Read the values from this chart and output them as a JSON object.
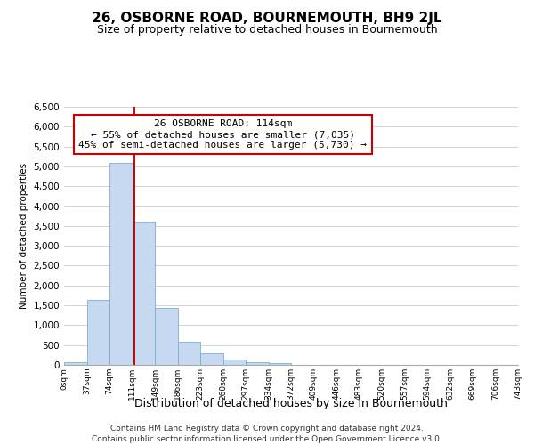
{
  "title": "26, OSBORNE ROAD, BOURNEMOUTH, BH9 2JL",
  "subtitle": "Size of property relative to detached houses in Bournemouth",
  "xlabel": "Distribution of detached houses by size in Bournemouth",
  "ylabel": "Number of detached properties",
  "bar_values": [
    60,
    1630,
    5080,
    3600,
    1430,
    580,
    300,
    145,
    60,
    40,
    0,
    0,
    0,
    0,
    0,
    0,
    0,
    0,
    0,
    0
  ],
  "bin_labels": [
    "0sqm",
    "37sqm",
    "74sqm",
    "111sqm",
    "149sqm",
    "186sqm",
    "223sqm",
    "260sqm",
    "297sqm",
    "334sqm",
    "372sqm",
    "409sqm",
    "446sqm",
    "483sqm",
    "520sqm",
    "557sqm",
    "594sqm",
    "632sqm",
    "669sqm",
    "706sqm",
    "743sqm"
  ],
  "bar_color": "#c6d9f0",
  "bar_edge_color": "#7badd4",
  "vertical_line_color": "#cc0000",
  "annotation_title": "26 OSBORNE ROAD: 114sqm",
  "annotation_line1": "← 55% of detached houses are smaller (7,035)",
  "annotation_line2": "45% of semi-detached houses are larger (5,730) →",
  "annotation_box_color": "#ffffff",
  "annotation_box_edge": "#cc0000",
  "ylim": [
    0,
    6500
  ],
  "yticks": [
    0,
    500,
    1000,
    1500,
    2000,
    2500,
    3000,
    3500,
    4000,
    4500,
    5000,
    5500,
    6000,
    6500
  ],
  "footer_line1": "Contains HM Land Registry data © Crown copyright and database right 2024.",
  "footer_line2": "Contains public sector information licensed under the Open Government Licence v3.0.",
  "background_color": "#ffffff",
  "grid_color": "#cccccc"
}
